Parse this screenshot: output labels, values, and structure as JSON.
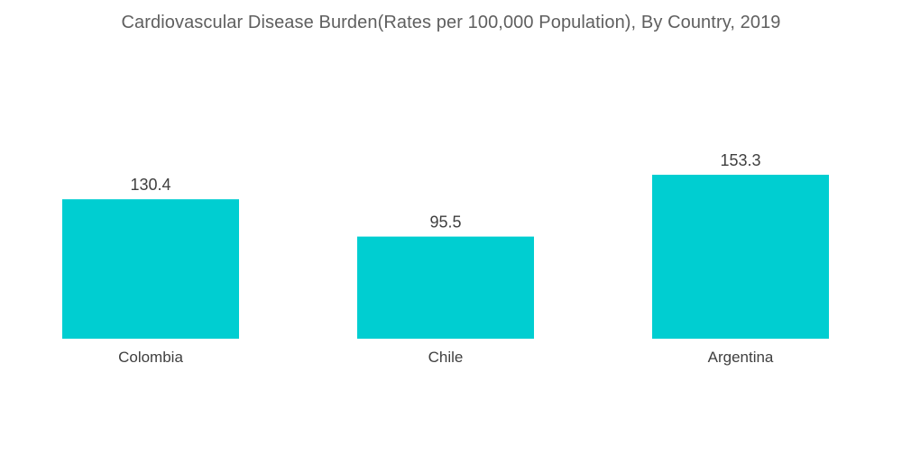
{
  "chart_data": {
    "type": "bar",
    "title": "Cardiovascular Disease Burden(Rates per 100,000 Population), By Country, 2019",
    "categories": [
      "Colombia",
      "Chile",
      "Argentina"
    ],
    "values": [
      130.4,
      95.5,
      153.3
    ],
    "value_labels": [
      "130.4",
      "95.5",
      "153.3"
    ],
    "xlabel": "",
    "ylabel": "",
    "ylim": [
      0,
      153.3
    ],
    "grid": false,
    "legend": "none",
    "bar_color": "#00ced1"
  }
}
